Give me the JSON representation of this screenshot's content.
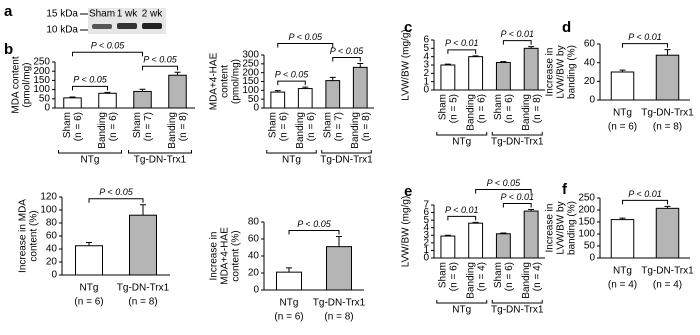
{
  "panel_a": {
    "letter": "a",
    "markers": [
      "15 kDa",
      "10 kDa"
    ],
    "lanes": [
      "Sham",
      "1 wk",
      "2 wk"
    ]
  },
  "chart_data": [
    {
      "type": "bar",
      "panel": "b",
      "y_label": [
        "MDA content",
        "(pmol/mg)"
      ],
      "categories": [
        "Sham",
        "Banding",
        "Sham",
        "Banding"
      ],
      "n_labels": [
        "(n = 6)",
        "(n = 6)",
        "(n = 7)",
        "(n = 8)"
      ],
      "values": [
        55,
        80,
        90,
        178
      ],
      "errors": [
        5,
        5,
        12,
        16
      ],
      "colors": [
        "#ffffff",
        "#ffffff",
        "#b5b5b5",
        "#b5b5b5"
      ],
      "ylim": [
        0,
        250
      ],
      "yticks": [
        0,
        50,
        100,
        150,
        200,
        250
      ],
      "groups": [
        {
          "label": "NTg",
          "bars": [
            0,
            1
          ]
        },
        {
          "label": "Tg-DN-Trx1",
          "bars": [
            2,
            3
          ]
        }
      ],
      "annotations": [
        {
          "text": "P < 0.05",
          "between": [
            0,
            1
          ]
        },
        {
          "text": "P < 0.05",
          "between": [
            0,
            2
          ]
        },
        {
          "text": "P < 0.05",
          "between": [
            2,
            3
          ]
        }
      ]
    },
    {
      "type": "bar",
      "y_label": [
        "MDA+4-HAE",
        "content",
        "(pmol/mg)"
      ],
      "categories": [
        "Sham",
        "Banding",
        "Sham",
        "Banding"
      ],
      "n_labels": [
        "(n = 6)",
        "(n = 6)",
        "(n = 7)",
        "(n = 8)"
      ],
      "values": [
        90,
        110,
        155,
        230
      ],
      "errors": [
        8,
        8,
        18,
        22
      ],
      "colors": [
        "#ffffff",
        "#ffffff",
        "#b5b5b5",
        "#b5b5b5"
      ],
      "ylim": [
        0,
        300
      ],
      "yticks": [
        0,
        50,
        100,
        150,
        200,
        250,
        300
      ],
      "groups": [
        {
          "label": "NTg",
          "bars": [
            0,
            1
          ]
        },
        {
          "label": "Tg-DN-Trx1",
          "bars": [
            2,
            3
          ]
        }
      ],
      "annotations": [
        {
          "text": "P < 0.05",
          "between": [
            0,
            1
          ]
        },
        {
          "text": "P < 0.05",
          "between": [
            0,
            2
          ]
        },
        {
          "text": "P < 0.05",
          "between": [
            2,
            3
          ]
        }
      ]
    },
    {
      "type": "bar",
      "y_label": [
        "Increase in MDA",
        "content (%)"
      ],
      "categories": [
        "NTg",
        "Tg-DN-Trx1"
      ],
      "n_labels": [
        "(n = 6)",
        "(n = 8)"
      ],
      "values": [
        45,
        92
      ],
      "errors": [
        5,
        16
      ],
      "colors": [
        "#ffffff",
        "#b5b5b5"
      ],
      "ylim": [
        0,
        120
      ],
      "yticks": [
        0,
        20,
        40,
        60,
        80,
        100,
        120
      ],
      "annotations": [
        {
          "text": "P < 0.05",
          "between": [
            0,
            1
          ]
        }
      ]
    },
    {
      "type": "bar",
      "y_label": [
        "Increase in",
        "MDA+4-HAE",
        "content (%)"
      ],
      "categories": [
        "NTg",
        "Tg-DN-Trx1"
      ],
      "n_labels": [
        "(n = 6)",
        "(n = 8)"
      ],
      "values": [
        21,
        51
      ],
      "errors": [
        5,
        12
      ],
      "colors": [
        "#ffffff",
        "#b5b5b5"
      ],
      "ylim": [
        0,
        80
      ],
      "yticks": [
        0,
        20,
        40,
        60,
        80
      ],
      "annotations": [
        {
          "text": "P < 0.05",
          "between": [
            0,
            1
          ]
        }
      ]
    },
    {
      "type": "bar",
      "panel": "c",
      "y_label": [
        "LVW/BW (mg/g)"
      ],
      "categories": [
        "Sham",
        "Banding",
        "Sham",
        "Banding"
      ],
      "n_labels": [
        "(n = 5)",
        "(n = 6)",
        "(n = 6)",
        "(n = 8)"
      ],
      "values": [
        3.0,
        4.0,
        3.3,
        5.0
      ],
      "errors": [
        0.1,
        0.1,
        0.1,
        0.2
      ],
      "colors": [
        "#ffffff",
        "#ffffff",
        "#b5b5b5",
        "#b5b5b5"
      ],
      "ylim": [
        0,
        6
      ],
      "yticks": [
        0,
        1,
        2,
        3,
        4,
        5,
        6
      ],
      "groups": [
        {
          "label": "NTg",
          "bars": [
            0,
            1
          ]
        },
        {
          "label": "Tg-DN-Trx1",
          "bars": [
            2,
            3
          ]
        }
      ],
      "annotations": [
        {
          "text": "P < 0.01",
          "between": [
            0,
            1
          ]
        },
        {
          "text": "P < 0.01",
          "between": [
            2,
            3
          ]
        }
      ]
    },
    {
      "type": "bar",
      "panel": "d",
      "y_label": [
        "Increase in",
        "LVW/BW by",
        "banding (%)"
      ],
      "categories": [
        "NTg",
        "Tg-DN-Trx1"
      ],
      "n_labels": [
        "(n = 6)",
        "(n = 8)"
      ],
      "values": [
        30,
        48
      ],
      "errors": [
        2,
        6
      ],
      "colors": [
        "#ffffff",
        "#b5b5b5"
      ],
      "ylim": [
        0,
        60
      ],
      "yticks": [
        0,
        20,
        40,
        60
      ],
      "annotations": [
        {
          "text": "P < 0.01",
          "between": [
            0,
            1
          ]
        }
      ]
    },
    {
      "type": "bar",
      "panel": "e",
      "y_label": [
        "LVW/BW (mg/g)"
      ],
      "categories": [
        "Sham",
        "Banding",
        "Sham",
        "Banding"
      ],
      "n_labels": [
        "(n = 6)",
        "(n = 4)",
        "(n = 6)",
        "(n = 4)"
      ],
      "values": [
        2.9,
        4.6,
        3.2,
        6.2
      ],
      "errors": [
        0.1,
        0.1,
        0.1,
        0.2
      ],
      "colors": [
        "#ffffff",
        "#ffffff",
        "#b5b5b5",
        "#b5b5b5"
      ],
      "ylim": [
        0,
        7
      ],
      "yticks": [
        0,
        1,
        2,
        3,
        4,
        5,
        6,
        7
      ],
      "groups": [
        {
          "label": "NTg",
          "bars": [
            0,
            1
          ]
        },
        {
          "label": "Tg-DN-Trx1",
          "bars": [
            2,
            3
          ]
        }
      ],
      "annotations": [
        {
          "text": "P < 0.01",
          "between": [
            0,
            1
          ]
        },
        {
          "text": "P < 0.05",
          "between": [
            1,
            3
          ]
        },
        {
          "text": "P < 0.01",
          "between": [
            2,
            3
          ]
        }
      ]
    },
    {
      "type": "bar",
      "panel": "f",
      "y_label": [
        "Increase in",
        "LVW/BW by",
        "banding (%)"
      ],
      "categories": [
        "NTg",
        "Tg-DN-Trx1"
      ],
      "n_labels": [
        "(n = 4)",
        "(n = 4)"
      ],
      "values": [
        160,
        207
      ],
      "errors": [
        6,
        8
      ],
      "colors": [
        "#ffffff",
        "#b5b5b5"
      ],
      "ylim": [
        0,
        250
      ],
      "yticks": [
        0,
        50,
        100,
        150,
        200,
        250
      ],
      "annotations": [
        {
          "text": "P < 0.01",
          "between": [
            0,
            1
          ]
        }
      ]
    }
  ]
}
